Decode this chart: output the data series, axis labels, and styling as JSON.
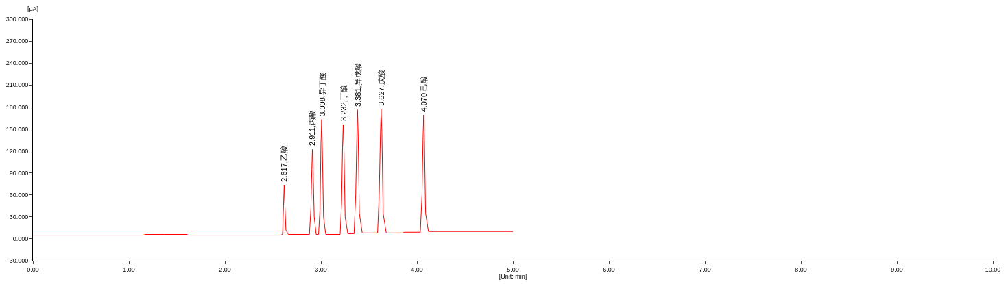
{
  "chart_data": {
    "type": "line",
    "xlabel": "[Unit: min]",
    "ylabel": "[pA]",
    "x": [
      0,
      1.15,
      1.17,
      1.35,
      1.37,
      1.6,
      1.62,
      2.58,
      2.6,
      2.61,
      2.617,
      2.625,
      2.635,
      2.66,
      2.88,
      2.895,
      2.905,
      2.911,
      2.918,
      2.93,
      2.95,
      2.975,
      2.99,
      3.0,
      3.008,
      3.015,
      3.027,
      3.05,
      3.2,
      3.215,
      3.225,
      3.232,
      3.24,
      3.252,
      3.28,
      3.345,
      3.362,
      3.374,
      3.381,
      3.388,
      3.4,
      3.43,
      3.59,
      3.607,
      3.62,
      3.627,
      3.635,
      3.648,
      3.68,
      3.85,
      3.87,
      4.035,
      4.053,
      4.063,
      4.07,
      4.078,
      4.09,
      4.12,
      4.22,
      5.0
    ],
    "series": [
      {
        "color": "#ff0000",
        "values": [
          5,
          5,
          6,
          6,
          6,
          6,
          5,
          5,
          6,
          45,
          73,
          45,
          12,
          6,
          6,
          40,
          95,
          122,
          95,
          30,
          6,
          6,
          40,
          130,
          163,
          120,
          30,
          6,
          6,
          50,
          125,
          156,
          120,
          30,
          7,
          7,
          60,
          140,
          176,
          140,
          35,
          8,
          8,
          60,
          145,
          177,
          145,
          35,
          8,
          8,
          9,
          9,
          60,
          135,
          169,
          135,
          35,
          10,
          10,
          10
        ]
      }
    ],
    "xlim": [
      0,
      10
    ],
    "xticks": [
      {
        "value": 0,
        "label": "0.00"
      },
      {
        "value": 1,
        "label": "1.00"
      },
      {
        "value": 2,
        "label": "2.00"
      },
      {
        "value": 3,
        "label": "3.00"
      },
      {
        "value": 4,
        "label": "4.00"
      },
      {
        "value": 5,
        "label": "5.00"
      },
      {
        "value": 6,
        "label": "6.00"
      },
      {
        "value": 7,
        "label": "7.00"
      },
      {
        "value": 8,
        "label": "8.00"
      },
      {
        "value": 9,
        "label": "9.00"
      },
      {
        "value": 10,
        "label": "10.00"
      }
    ],
    "ylim": [
      -30,
      300
    ],
    "yticks": [
      {
        "value": -30,
        "label": "-30.000"
      },
      {
        "value": 0,
        "label": "0.000"
      },
      {
        "value": 30,
        "label": "30.000"
      },
      {
        "value": 60,
        "label": "60.000"
      },
      {
        "value": 90,
        "label": "90.000"
      },
      {
        "value": 120,
        "label": "120.000"
      },
      {
        "value": 150,
        "label": "150.000"
      },
      {
        "value": 180,
        "label": "180.000"
      },
      {
        "value": 210,
        "label": "210.000"
      },
      {
        "value": 240,
        "label": "240.000"
      },
      {
        "value": 270,
        "label": "270.000"
      },
      {
        "value": 300,
        "label": "300.000"
      }
    ],
    "marker": "none",
    "line_style": "solid",
    "annotations": [
      {
        "text": "2.617,乙酸",
        "x": 2.617,
        "y": 73
      },
      {
        "text": "2.911,丙酸",
        "x": 2.911,
        "y": 122
      },
      {
        "text": "3.008,异丁酸",
        "x": 3.008,
        "y": 163
      },
      {
        "text": "3.232,丁酸",
        "x": 3.232,
        "y": 156
      },
      {
        "text": "3.381,异戊酸",
        "x": 3.381,
        "y": 176
      },
      {
        "text": "3.627,戊酸",
        "x": 3.627,
        "y": 177
      },
      {
        "text": "4.070,己酸",
        "x": 4.07,
        "y": 169
      }
    ]
  }
}
